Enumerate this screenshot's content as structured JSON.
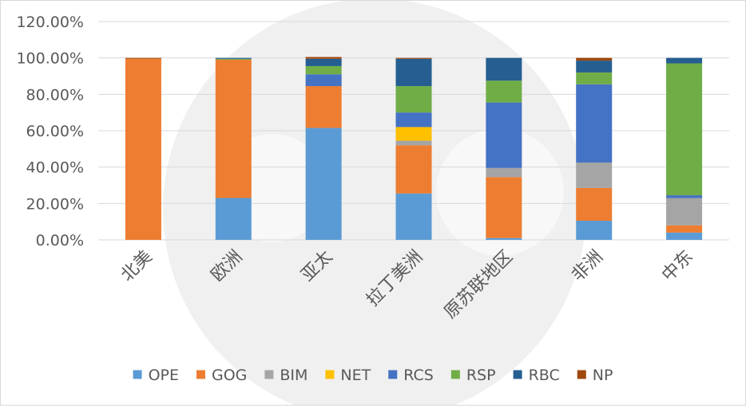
{
  "chart_data": {
    "type": "bar",
    "stacked": true,
    "percent_stacked": true,
    "categories": [
      "北美",
      "欧洲",
      "亚太",
      "拉丁美洲",
      "原苏联地区",
      "非洲",
      "中东"
    ],
    "yticks": [
      "0.00%",
      "20.00%",
      "40.00%",
      "60.00%",
      "80.00%",
      "100.00%",
      "120.00%"
    ],
    "ylim": [
      0,
      120
    ],
    "grid": true,
    "legend_position": "bottom",
    "series": [
      {
        "name": "OPE",
        "color": "#5b9bd5",
        "values": [
          0,
          23,
          61.5,
          25.5,
          1,
          10.5,
          4
        ]
      },
      {
        "name": "GOG",
        "color": "#ed7d31",
        "values": [
          99.6,
          76,
          23,
          26.5,
          33.5,
          18,
          4
        ]
      },
      {
        "name": "BIM",
        "color": "#a5a5a5",
        "values": [
          0,
          0,
          0,
          2.5,
          5,
          14,
          15
        ]
      },
      {
        "name": "NET",
        "color": "#ffc000",
        "values": [
          0,
          0,
          0,
          7.5,
          0,
          0,
          0
        ]
      },
      {
        "name": "RCS",
        "color": "#4472c4",
        "values": [
          0,
          0,
          6.5,
          8,
          36,
          43,
          1.5
        ]
      },
      {
        "name": "RSP",
        "color": "#70ad47",
        "values": [
          0,
          0.5,
          4.5,
          14.5,
          12,
          6.5,
          72.5
        ]
      },
      {
        "name": "RBC",
        "color": "#255e91",
        "values": [
          0,
          0.5,
          4,
          15,
          12.5,
          6.5,
          3
        ]
      },
      {
        "name": "NP",
        "color": "#9e480e",
        "values": [
          0.4,
          0,
          1,
          0.5,
          0,
          1.5,
          0
        ]
      }
    ]
  }
}
